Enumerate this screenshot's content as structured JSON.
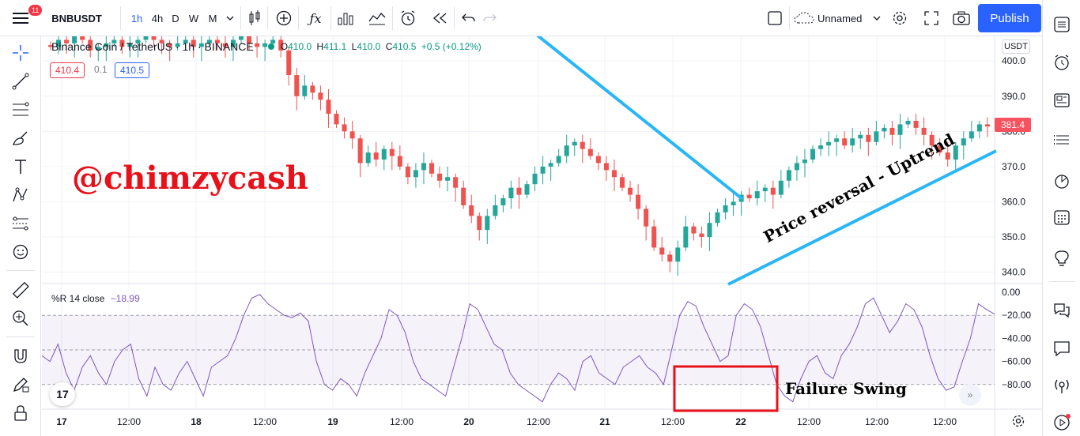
{
  "toolbar": {
    "notification_count": "11",
    "symbol": "BNBUSDT",
    "intervals": [
      "1h",
      "4h",
      "D",
      "W",
      "M"
    ],
    "active_interval": "1h",
    "layout_name": "Unnamed",
    "publish_label": "Publish"
  },
  "legend": {
    "title": "Binance Coin / TetherUS · 1h · BINANCE",
    "o_key": "O",
    "o": "410.0",
    "h_key": "H",
    "h": "411.1",
    "l_key": "L",
    "l": "410.0",
    "c_key": "C",
    "c": "410.5",
    "change": "+0.5 (+0.12%)",
    "bid": "410.4",
    "spread": "0.1",
    "ask": "410.5"
  },
  "indicator": {
    "label": "%R 14 close",
    "value": "−18.99"
  },
  "price_axis": {
    "currency": "USDT",
    "last_price": "381.4",
    "ticks": [
      "400.0",
      "390.0",
      "380.0",
      "370.0",
      "360.0",
      "350.0",
      "340.0"
    ]
  },
  "indicator_axis": {
    "ticks": [
      "0.00",
      "−20.00",
      "−40.00",
      "−60.00",
      "−80.00"
    ]
  },
  "time_axis": {
    "ticks": [
      "17",
      "12:00",
      "18",
      "12:00",
      "19",
      "12:00",
      "20",
      "12:00",
      "21",
      "12:00",
      "22",
      "12:00",
      "12:00",
      "12:00"
    ]
  },
  "annotations": {
    "watermark": "@chimzycash",
    "uptrend": "Price reversal - Uptrend",
    "failure_swing": "Failure Swing"
  },
  "colors": {
    "up": "#26a69a",
    "down": "#ef5350",
    "trendline": "#29b6f6",
    "indicator_line": "#7e57c2",
    "box": "#e8111a",
    "accent": "#2962ff"
  },
  "chart_data": {
    "type": "candlestick",
    "price_range": [
      337,
      407
    ],
    "indicator_range": [
      -100,
      0
    ],
    "candles_close": [
      404,
      406,
      405,
      407,
      406,
      403,
      404,
      405,
      406,
      404,
      405,
      406,
      407,
      406,
      405,
      404,
      405,
      406,
      404,
      405,
      406,
      405,
      404,
      406,
      407,
      405,
      404,
      405,
      406,
      403,
      396,
      390,
      393,
      391,
      389,
      385,
      382,
      380,
      378,
      371,
      374,
      372,
      375,
      373,
      370,
      367,
      369,
      371,
      368,
      366,
      367,
      364,
      359,
      356,
      352,
      356,
      359,
      361,
      364,
      362,
      365,
      368,
      370,
      371,
      373,
      376,
      377,
      375,
      373,
      371,
      369,
      367,
      364,
      362,
      358,
      353,
      347,
      345,
      343,
      347,
      353,
      351,
      350,
      354,
      357,
      359,
      360,
      362,
      361,
      363,
      364,
      362,
      366,
      369,
      371,
      372,
      375,
      376,
      377,
      378,
      376,
      378,
      379,
      377,
      380,
      381,
      379,
      382,
      383,
      381,
      379,
      376,
      374,
      372,
      376,
      378,
      380,
      382,
      381.4
    ],
    "williams_r": [
      -55,
      -60,
      -45,
      -70,
      -85,
      -65,
      -55,
      -70,
      -80,
      -60,
      -50,
      -45,
      -75,
      -90,
      -65,
      -80,
      -85,
      -70,
      -60,
      -75,
      -90,
      -65,
      -60,
      -55,
      -40,
      -20,
      -5,
      -2,
      -10,
      -15,
      -20,
      -22,
      -18,
      -25,
      -60,
      -80,
      -85,
      -75,
      -80,
      -90,
      -70,
      -55,
      -40,
      -15,
      -20,
      -35,
      -60,
      -75,
      -80,
      -85,
      -90,
      -65,
      -40,
      -10,
      -15,
      -30,
      -45,
      -50,
      -70,
      -80,
      -85,
      -90,
      -95,
      -80,
      -70,
      -75,
      -85,
      -60,
      -55,
      -70,
      -75,
      -80,
      -65,
      -60,
      -55,
      -65,
      -70,
      -80,
      -50,
      -20,
      -8,
      -12,
      -30,
      -45,
      -60,
      -55,
      -20,
      -10,
      -15,
      -30,
      -55,
      -80,
      -90,
      -95,
      -75,
      -60,
      -55,
      -70,
      -75,
      -55,
      -45,
      -30,
      -10,
      -5,
      -20,
      -35,
      -25,
      -10,
      -15,
      -30,
      -55,
      -75,
      -85,
      -82,
      -60,
      -40,
      -10,
      -15,
      -19
    ]
  }
}
